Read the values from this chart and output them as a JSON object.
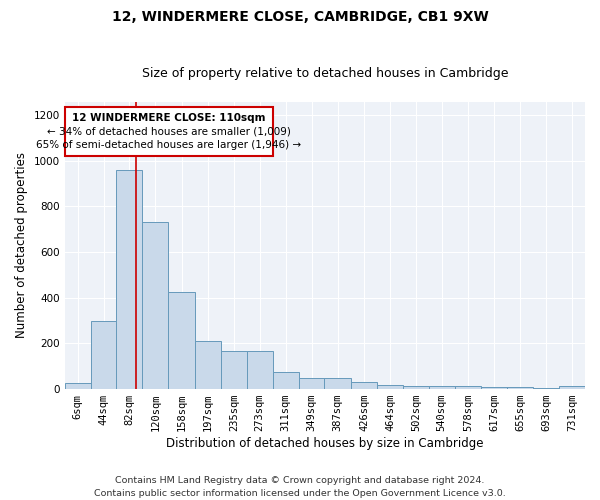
{
  "title": "12, WINDERMERE CLOSE, CAMBRIDGE, CB1 9XW",
  "subtitle": "Size of property relative to detached houses in Cambridge",
  "xlabel": "Distribution of detached houses by size in Cambridge",
  "ylabel": "Number of detached properties",
  "footnote1": "Contains HM Land Registry data © Crown copyright and database right 2024.",
  "footnote2": "Contains public sector information licensed under the Open Government Licence v3.0.",
  "property_size": 110,
  "property_label": "12 WINDERMERE CLOSE: 110sqm",
  "annotation_line1": "← 34% of detached houses are smaller (1,009)",
  "annotation_line2": "65% of semi-detached houses are larger (1,946) →",
  "bar_color": "#c9d9ea",
  "bar_edge_color": "#6699bb",
  "vline_color": "#cc0000",
  "annotation_box_edge": "#cc0000",
  "bins": [
    6,
    44,
    82,
    120,
    158,
    197,
    235,
    273,
    311,
    349,
    387,
    426,
    464,
    502,
    540,
    578,
    617,
    655,
    693,
    731,
    769
  ],
  "counts": [
    25,
    300,
    960,
    730,
    425,
    210,
    165,
    165,
    75,
    50,
    50,
    30,
    18,
    15,
    12,
    12,
    8,
    8,
    5,
    12
  ],
  "ylim": [
    0,
    1260
  ],
  "yticks": [
    0,
    200,
    400,
    600,
    800,
    1000,
    1200
  ],
  "background_color": "#eef2f8",
  "grid_color": "#ffffff",
  "title_fontsize": 10,
  "subtitle_fontsize": 9,
  "axis_label_fontsize": 8.5,
  "tick_fontsize": 7.5,
  "annotation_fontsize": 7.5,
  "footnote_fontsize": 6.8
}
